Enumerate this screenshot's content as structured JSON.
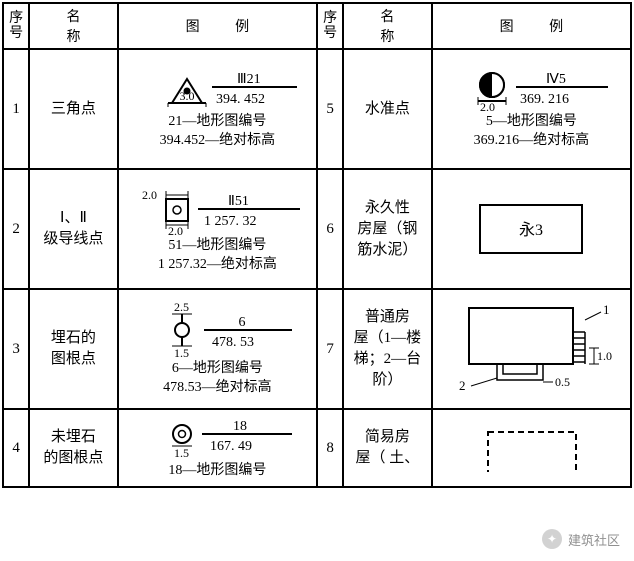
{
  "headers": {
    "seq": "序号",
    "name": "名 称",
    "legend": "图  例"
  },
  "rows": [
    {
      "seq": "1",
      "name": "三角点",
      "legend": {
        "label": "Ⅲ21",
        "dim": "3.0",
        "value": "394. 452",
        "caption1": "21—地形图编号",
        "caption2": "394.452—绝对标高"
      }
    },
    {
      "seq": "2",
      "name": "Ⅰ、Ⅱ\n级导线点",
      "legend": {
        "label": "Ⅱ51",
        "dim_top": "2.0",
        "dim_bot": "2.0",
        "value": "1 257. 32",
        "caption1": "51—地形图编号",
        "caption2": "1 257.32—绝对标高"
      }
    },
    {
      "seq": "3",
      "name": "埋石的\n图根点",
      "legend": {
        "label": "6",
        "dim_top": "2.5",
        "dim_bot": "1.5",
        "value": "478. 53",
        "caption1": "6—地形图编号",
        "caption2": "478.53—绝对标高"
      }
    },
    {
      "seq": "4",
      "name": "未埋石\n的图根点",
      "legend": {
        "label": "18",
        "dim_bot": "1.5",
        "value": "167. 49",
        "caption1": "18—地形图编号"
      }
    },
    {
      "seq": "5",
      "name": "水准点",
      "legend": {
        "label": "Ⅳ5",
        "dim": "2.0",
        "value": "369. 216",
        "caption1": "5—地形图编号",
        "caption2": "369.216—绝对标高"
      }
    },
    {
      "seq": "6",
      "name": "永久性\n房屋（钢\n筋水泥）",
      "legend": {
        "text": "永3"
      }
    },
    {
      "seq": "7",
      "name": "普通房\n屋（1—楼\n梯；2—台\n阶）",
      "legend": {
        "ann1": "1",
        "ann2": "2",
        "dimv": "1.0",
        "dimh": "0.5"
      }
    },
    {
      "seq": "8",
      "name": "简易房\n屋（ 土、",
      "legend": {}
    }
  ],
  "watermark": "建筑社区",
  "colors": {
    "line": "#000000",
    "bg": "#ffffff"
  }
}
